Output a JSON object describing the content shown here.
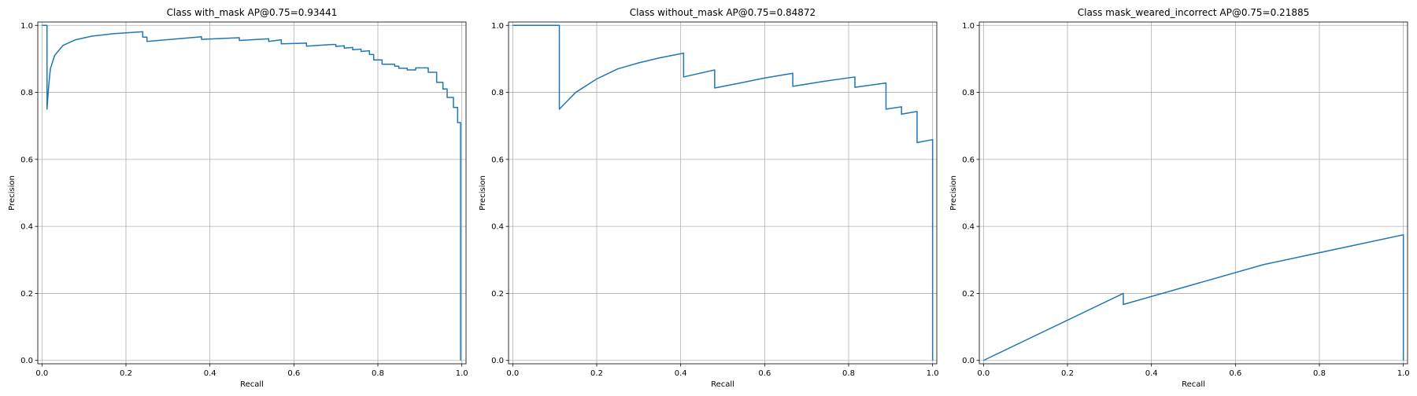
{
  "chart_data": [
    {
      "type": "line",
      "title": "Class with_mask AP@0.75=0.93441",
      "xlabel": "Recall",
      "ylabel": "Precision",
      "xlim": [
        -0.01,
        1.01
      ],
      "ylim": [
        -0.01,
        1.01
      ],
      "xticks": [
        "0.0",
        "0.2",
        "0.4",
        "0.6",
        "0.8",
        "1.0"
      ],
      "yticks": [
        "0.0",
        "0.2",
        "0.4",
        "0.6",
        "0.8",
        "1.0"
      ],
      "grid": true,
      "color": "#1f77b4",
      "series": [
        {
          "x": [
            0.0,
            0.012,
            0.012,
            0.016,
            0.02,
            0.03,
            0.05,
            0.08,
            0.12,
            0.17,
            0.24,
            0.24,
            0.25,
            0.25,
            0.38,
            0.38,
            0.47,
            0.47,
            0.54,
            0.54,
            0.57,
            0.57,
            0.63,
            0.63,
            0.69,
            0.7,
            0.7,
            0.72,
            0.72,
            0.74,
            0.74,
            0.76,
            0.76,
            0.78,
            0.78,
            0.79,
            0.79,
            0.81,
            0.81,
            0.84,
            0.84,
            0.85,
            0.85,
            0.87,
            0.87,
            0.89,
            0.89,
            0.92,
            0.92,
            0.94,
            0.94,
            0.955,
            0.955,
            0.965,
            0.965,
            0.97,
            0.97,
            0.98,
            0.98,
            0.99,
            0.99,
            0.995,
            0.995,
            0.997,
            0.997
          ],
          "y": [
            1.0,
            1.0,
            0.75,
            0.82,
            0.87,
            0.91,
            0.94,
            0.957,
            0.968,
            0.975,
            0.981,
            0.965,
            0.965,
            0.952,
            0.966,
            0.958,
            0.963,
            0.955,
            0.96,
            0.952,
            0.957,
            0.945,
            0.947,
            0.938,
            0.943,
            0.943,
            0.937,
            0.939,
            0.932,
            0.934,
            0.927,
            0.929,
            0.922,
            0.924,
            0.913,
            0.913,
            0.897,
            0.897,
            0.884,
            0.884,
            0.878,
            0.878,
            0.872,
            0.872,
            0.867,
            0.867,
            0.873,
            0.873,
            0.86,
            0.86,
            0.83,
            0.83,
            0.81,
            0.81,
            0.785,
            0.785,
            0.785,
            0.785,
            0.755,
            0.755,
            0.71,
            0.71,
            0.71,
            0.71,
            0.0
          ]
        }
      ]
    },
    {
      "type": "line",
      "title": "Class without_mask AP@0.75=0.84872",
      "xlabel": "Recall",
      "ylabel": "Precision",
      "xlim": [
        -0.01,
        1.01
      ],
      "ylim": [
        -0.01,
        1.01
      ],
      "xticks": [
        "0.0",
        "0.2",
        "0.4",
        "0.6",
        "0.8",
        "1.0"
      ],
      "yticks": [
        "0.0",
        "0.2",
        "0.4",
        "0.6",
        "0.8",
        "1.0"
      ],
      "grid": true,
      "color": "#1f77b4",
      "series": [
        {
          "x": [
            0.0,
            0.111,
            0.111,
            0.15,
            0.2,
            0.25,
            0.3,
            0.35,
            0.407,
            0.407,
            0.481,
            0.481,
            0.55,
            0.6,
            0.667,
            0.667,
            0.741,
            0.815,
            0.815,
            0.889,
            0.889,
            0.926,
            0.926,
            0.963,
            0.963,
            1.0,
            1.0
          ],
          "y": [
            1.0,
            1.0,
            0.75,
            0.8,
            0.84,
            0.87,
            0.888,
            0.903,
            0.917,
            0.846,
            0.867,
            0.813,
            0.83,
            0.843,
            0.857,
            0.818,
            0.833,
            0.846,
            0.815,
            0.828,
            0.75,
            0.757,
            0.735,
            0.743,
            0.65,
            0.659,
            0.0
          ]
        }
      ]
    },
    {
      "type": "line",
      "title": "Class mask_weared_incorrect AP@0.75=0.21885",
      "xlabel": "Recall",
      "ylabel": "Precision",
      "xlim": [
        -0.01,
        1.01
      ],
      "ylim": [
        -0.01,
        1.01
      ],
      "xticks": [
        "0.0",
        "0.2",
        "0.4",
        "0.6",
        "0.8",
        "1.0"
      ],
      "yticks": [
        "0.0",
        "0.2",
        "0.4",
        "0.6",
        "0.8",
        "1.0"
      ],
      "grid": true,
      "color": "#1f77b4",
      "series": [
        {
          "x": [
            0.0,
            0.333,
            0.333,
            0.667,
            1.0,
            1.0
          ],
          "y": [
            0.0,
            0.2,
            0.167,
            0.286,
            0.375,
            0.0
          ]
        }
      ]
    }
  ]
}
